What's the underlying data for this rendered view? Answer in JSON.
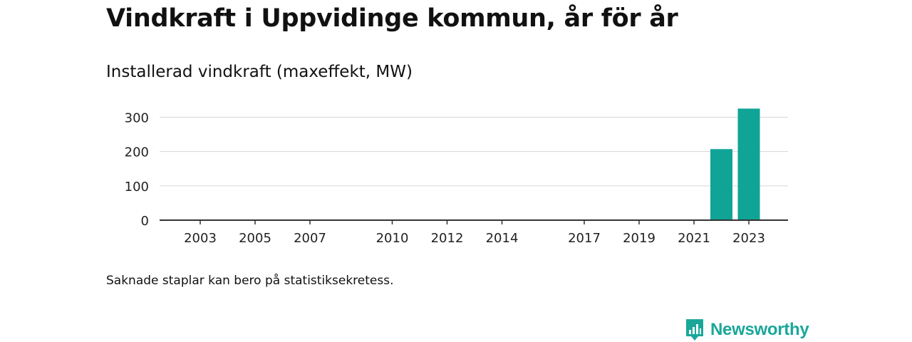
{
  "title": "Vindkraft i Uppvidinge kommun, år för år",
  "subtitle": "Installerad vindkraft (maxeffekt, MW)",
  "footnote": "Saknade staplar kan bero på statistiksekretess.",
  "brand": {
    "name": "Newsworthy",
    "icon": "newsworthy-logo-icon",
    "color": "#1aa79a"
  },
  "chart_data": {
    "type": "bar",
    "categories": [
      "2003",
      "2004",
      "2005",
      "2006",
      "2007",
      "2008",
      "2009",
      "2010",
      "2011",
      "2012",
      "2013",
      "2014",
      "2015",
      "2016",
      "2017",
      "2018",
      "2019",
      "2020",
      "2021",
      "2022",
      "2023"
    ],
    "values": [
      0,
      0,
      0,
      0,
      0,
      0,
      0,
      0,
      0,
      0,
      0,
      2,
      2,
      2,
      2,
      2,
      2,
      2,
      2,
      207,
      325
    ],
    "x_tick_labels": [
      "2003",
      "2005",
      "2007",
      "2010",
      "2012",
      "2014",
      "2017",
      "2019",
      "2021",
      "2023"
    ],
    "y_ticks": [
      0,
      100,
      200,
      300
    ],
    "ylim": [
      0,
      330
    ],
    "grid": true,
    "xlabel": "",
    "ylabel": "",
    "bar_color": "#10a497"
  }
}
